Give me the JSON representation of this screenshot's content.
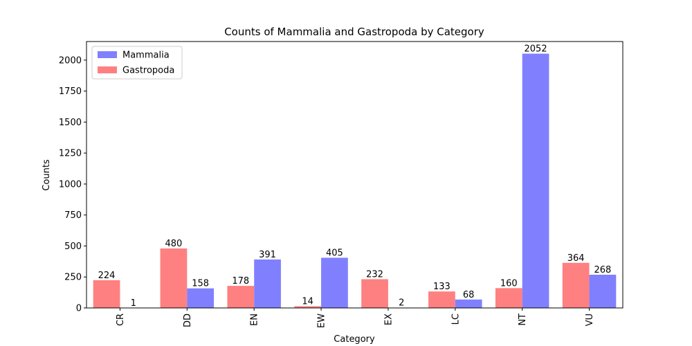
{
  "chart_data": {
    "type": "bar",
    "title": "Counts of Mammalia and Gastropoda by Category",
    "xlabel": "Category",
    "ylabel": "Counts",
    "categories": [
      "CR",
      "DD",
      "EN",
      "EW",
      "EX",
      "LC",
      "NT",
      "VU"
    ],
    "series": [
      {
        "name": "Gastropoda",
        "color": "#ff8080",
        "values": [
          224,
          480,
          178,
          14,
          232,
          133,
          160,
          364
        ]
      },
      {
        "name": "Mammalia",
        "color": "#8080ff",
        "values": [
          1,
          158,
          391,
          405,
          2,
          68,
          2052,
          268
        ]
      }
    ],
    "legend_order": [
      "Mammalia",
      "Gastropoda"
    ],
    "ylim": [
      0,
      2150
    ],
    "yticks": [
      0,
      250,
      500,
      750,
      1000,
      1250,
      1500,
      1750,
      2000
    ],
    "xtick_rotation": 90,
    "legend_position": "top-left",
    "grid": false
  }
}
